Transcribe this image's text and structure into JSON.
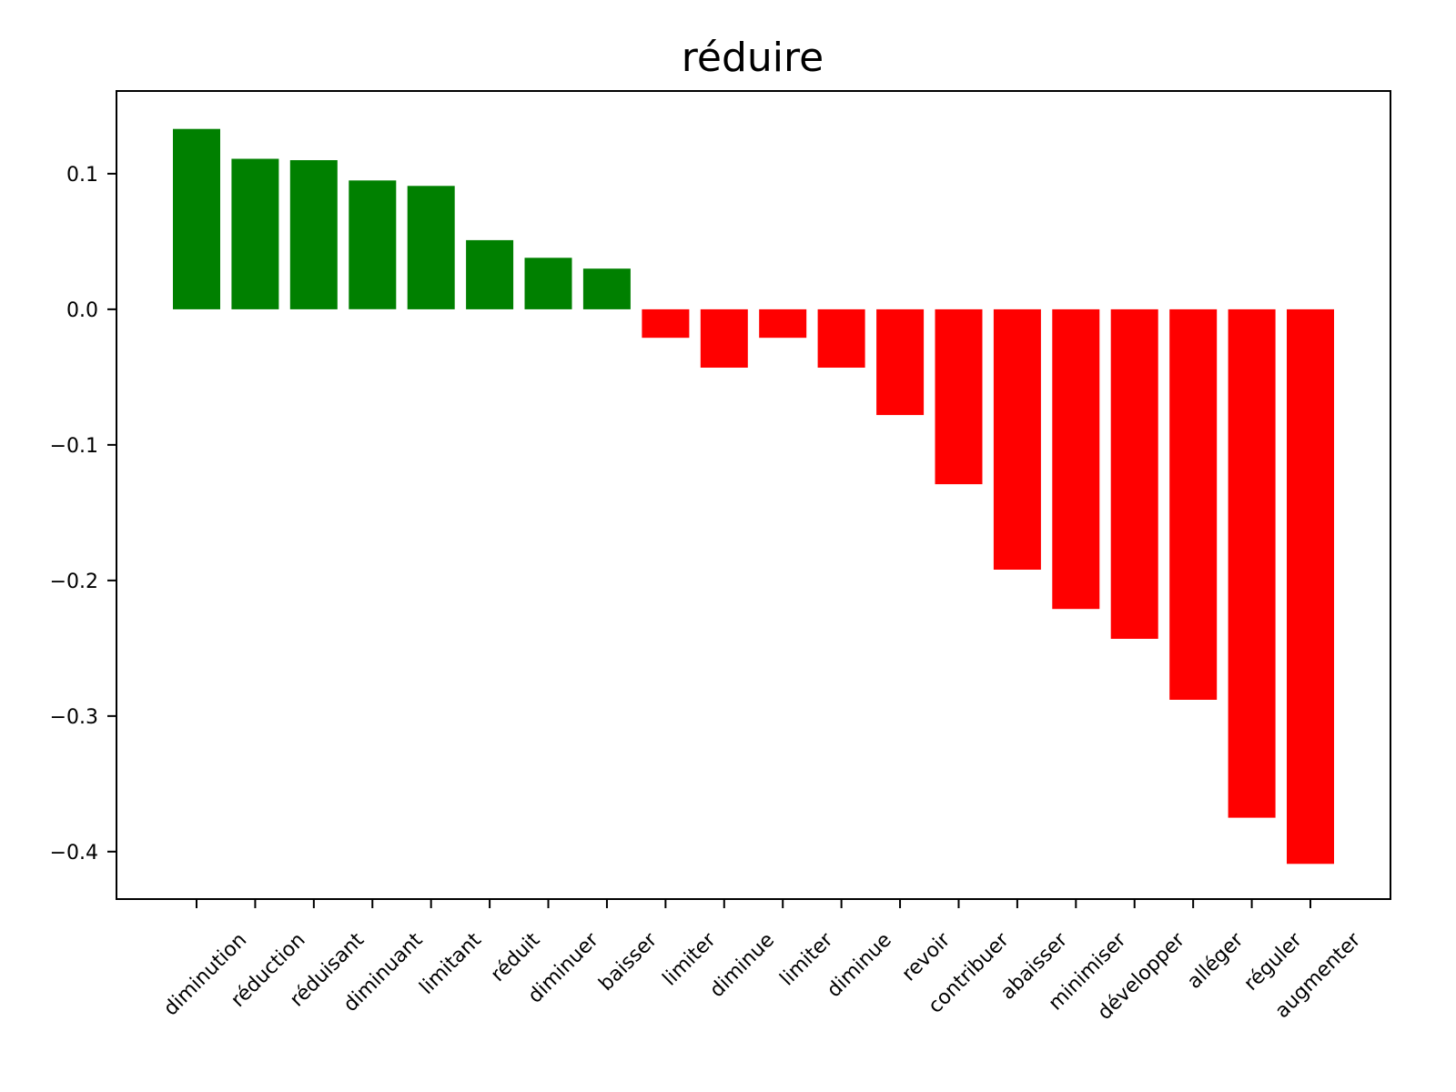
{
  "chart_data": {
    "type": "bar",
    "title": "réduire",
    "xlabel": "",
    "ylabel": "",
    "categories": [
      "diminution",
      "réduction",
      "réduisant",
      "diminuant",
      "limitant",
      "réduit",
      "diminuer",
      "baisser",
      "limiter",
      "diminue",
      "limiter",
      "diminue",
      "revoir",
      "contribuer",
      "abaisser",
      "minimiser",
      "développer",
      "alléger",
      "réguler",
      "augmenter"
    ],
    "values": [
      0.133,
      0.111,
      0.11,
      0.095,
      0.091,
      0.051,
      0.038,
      0.03,
      -0.021,
      -0.043,
      -0.021,
      -0.043,
      -0.078,
      -0.129,
      -0.192,
      -0.221,
      -0.243,
      -0.288,
      -0.375,
      -0.409
    ],
    "ylim": [
      -0.435,
      0.161
    ],
    "yticks": [
      0.1,
      0.0,
      -0.1,
      -0.2,
      -0.3,
      -0.4
    ],
    "ytick_labels": [
      "0.1",
      "0.0",
      "−0.1",
      "−0.2",
      "−0.3",
      "−0.4"
    ],
    "positive_color": "#008000",
    "negative_color": "#ff0000",
    "grid": false,
    "legend": "none"
  }
}
